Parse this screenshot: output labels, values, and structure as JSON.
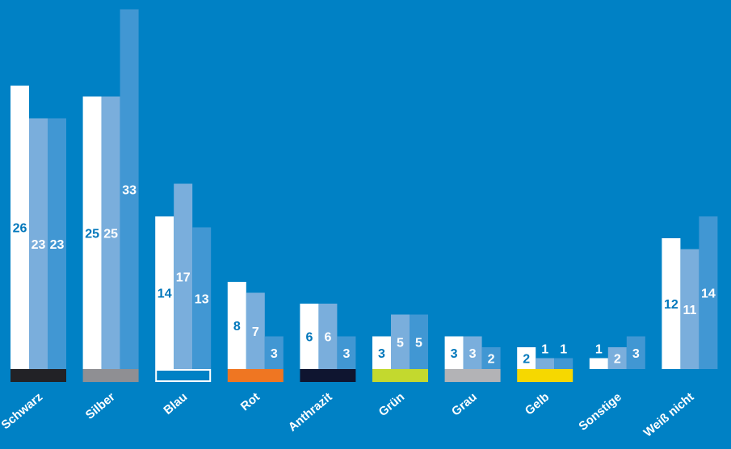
{
  "chart_data": {
    "type": "bar",
    "categories": [
      "Schwarz",
      "Silber",
      "Blau",
      "Rot",
      "Anthrazit",
      "Grün",
      "Grau",
      "Gelb",
      "Sonstige",
      "Weiß nicht"
    ],
    "series": [
      {
        "values": [
          26,
          25,
          14,
          8,
          6,
          3,
          3,
          2,
          1,
          12
        ],
        "color": "#ffffff",
        "label_color": "#0077bb"
      },
      {
        "values": [
          23,
          25,
          17,
          7,
          6,
          5,
          3,
          1,
          2,
          11
        ],
        "color": "#7aaedc",
        "label_color": "#ffffff"
      },
      {
        "values": [
          23,
          33,
          13,
          3,
          3,
          5,
          2,
          1,
          3,
          14
        ],
        "color": "#4197d3",
        "label_color": "#ffffff"
      }
    ],
    "category_colors": [
      "#222226",
      "#8f8f93",
      "outline-white",
      "#ef7622",
      "#0f1530",
      "#c3d92e",
      "#b3b3b6",
      "#f6d800",
      "none",
      "none"
    ],
    "ylim": [
      0,
      34
    ],
    "background": "#0081c5",
    "grid": false,
    "legend": "none",
    "title": "",
    "xlabel": "",
    "ylabel": ""
  }
}
